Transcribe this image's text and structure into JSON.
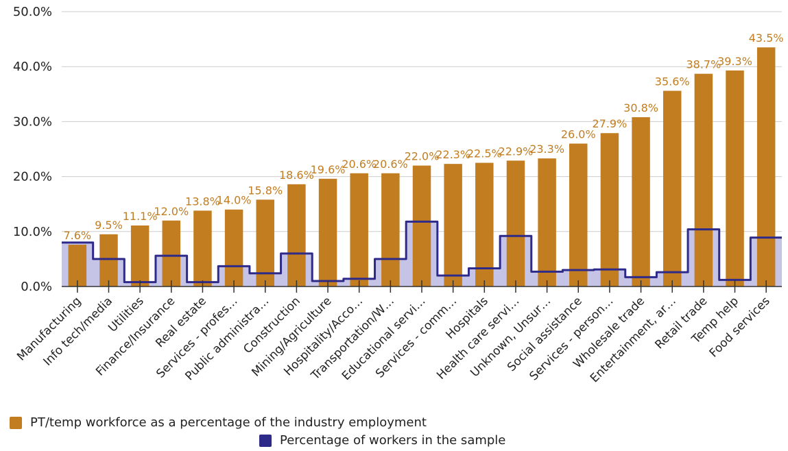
{
  "chart_data": {
    "type": "bar",
    "categories": [
      "Manufacturing",
      "Info tech/media",
      "Utilities",
      "Finance/Insurance",
      "Real estate",
      "Services - profes…",
      "Public administra…",
      "Construction",
      "Mining/Agriculture",
      "Hospitality/Acco…",
      "Transportation/W…",
      "Educational servi…",
      "Services - comm…",
      "Hospitals",
      "Health care servi…",
      "Unknown, Unsur…",
      "Social assistance",
      "Services - person…",
      "Wholesale trade",
      "Entertainment, ar…",
      "Retail trade",
      "Temp help",
      "Food services"
    ],
    "series": [
      {
        "name": "PT/temp workforce as a percentage of the industry employment",
        "type": "bar",
        "color": "#c17d1f",
        "values": [
          7.6,
          9.5,
          11.1,
          12.0,
          13.8,
          14.0,
          15.8,
          18.6,
          19.6,
          20.6,
          20.6,
          22.0,
          22.3,
          22.5,
          22.9,
          23.3,
          26.0,
          27.9,
          30.8,
          35.6,
          38.7,
          39.3,
          43.5
        ],
        "labels": [
          "7.6%",
          "9.5%",
          "11.1%",
          "12.0%",
          "13.8%",
          "14.0%",
          "15.8%",
          "18.6%",
          "19.6%",
          "20.6%",
          "20.6%",
          "22.0%",
          "22.3%",
          "22.5%",
          "22.9%",
          "23.3%",
          "26.0%",
          "27.9%",
          "30.8%",
          "35.6%",
          "38.7%",
          "39.3%",
          "43.5%"
        ]
      },
      {
        "name": "Percentage of workers in the sample",
        "type": "stepped-area",
        "color": "#2e2a8a",
        "fill": "#c5c3e6",
        "values": [
          8.0,
          5.0,
          0.8,
          5.6,
          0.8,
          3.7,
          2.4,
          6.0,
          1.0,
          1.4,
          5.0,
          11.8,
          2.0,
          3.3,
          9.2,
          2.7,
          3.0,
          3.1,
          1.7,
          2.6,
          10.4,
          1.2,
          8.9
        ]
      }
    ],
    "yticks": [
      "0.0%",
      "10.0%",
      "20.0%",
      "30.0%",
      "40.0%",
      "50.0%"
    ],
    "ylim": [
      0,
      50
    ],
    "grid": true,
    "legend_position": "bottom"
  }
}
